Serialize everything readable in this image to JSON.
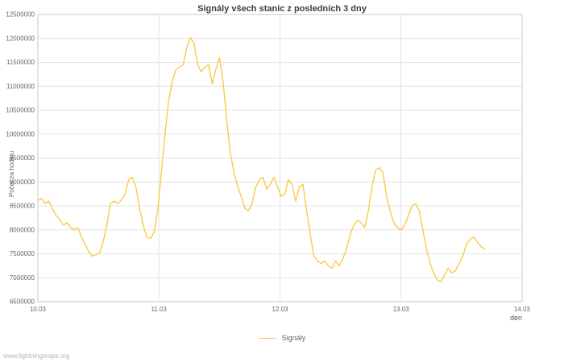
{
  "watermark": "www.lightningmaps.org",
  "chart_data": {
    "type": "line",
    "title": "Signály všech stanic z posledních 3 dny",
    "xlabel": "den",
    "ylabel": "Počet za hodinu",
    "xlim": [
      10,
      14
    ],
    "ylim": [
      6500000,
      12500000
    ],
    "grid": true,
    "legend_position": "bottom-center",
    "x_ticks": [
      {
        "value": 10,
        "label": "10.03"
      },
      {
        "value": 11,
        "label": "11.03"
      },
      {
        "value": 12,
        "label": "12.03"
      },
      {
        "value": 13,
        "label": "13.03"
      },
      {
        "value": 14,
        "label": "14.03"
      }
    ],
    "y_ticks": [
      6500000,
      7000000,
      7500000,
      8000000,
      8500000,
      9000000,
      9500000,
      10000000,
      10500000,
      11000000,
      11500000,
      12000000,
      12500000
    ],
    "series": [
      {
        "name": "Signály",
        "color": "#fcc63d",
        "x_start": 10.0,
        "x_step": 0.03,
        "values": [
          8620000,
          8660000,
          8550000,
          8600000,
          8450000,
          8300000,
          8220000,
          8100000,
          8150000,
          8050000,
          8000000,
          8050000,
          7850000,
          7700000,
          7550000,
          7450000,
          7480000,
          7520000,
          7750000,
          8100000,
          8550000,
          8600000,
          8550000,
          8620000,
          8750000,
          9050000,
          9100000,
          8900000,
          8450000,
          8100000,
          7850000,
          7820000,
          7950000,
          8400000,
          9200000,
          10000000,
          10700000,
          11100000,
          11350000,
          11400000,
          11450000,
          11800000,
          12020000,
          11900000,
          11450000,
          11300000,
          11400000,
          11450000,
          11050000,
          11350000,
          11600000,
          11100000,
          10300000,
          9600000,
          9200000,
          8900000,
          8700000,
          8450000,
          8400000,
          8550000,
          8900000,
          9050000,
          9100000,
          8850000,
          8950000,
          9100000,
          8900000,
          8700000,
          8750000,
          9050000,
          8950000,
          8600000,
          8900000,
          8950000,
          8400000,
          7900000,
          7450000,
          7350000,
          7300000,
          7350000,
          7250000,
          7200000,
          7350000,
          7250000,
          7400000,
          7600000,
          7900000,
          8100000,
          8200000,
          8150000,
          8050000,
          8400000,
          8900000,
          9250000,
          9300000,
          9200000,
          8700000,
          8400000,
          8150000,
          8050000,
          8000000,
          8100000,
          8300000,
          8500000,
          8550000,
          8400000,
          8000000,
          7600000,
          7300000,
          7100000,
          6950000,
          6920000,
          7050000,
          7200000,
          7100000,
          7150000,
          7300000,
          7450000,
          7700000,
          7800000,
          7850000,
          7750000,
          7650000,
          7600000
        ]
      }
    ]
  }
}
